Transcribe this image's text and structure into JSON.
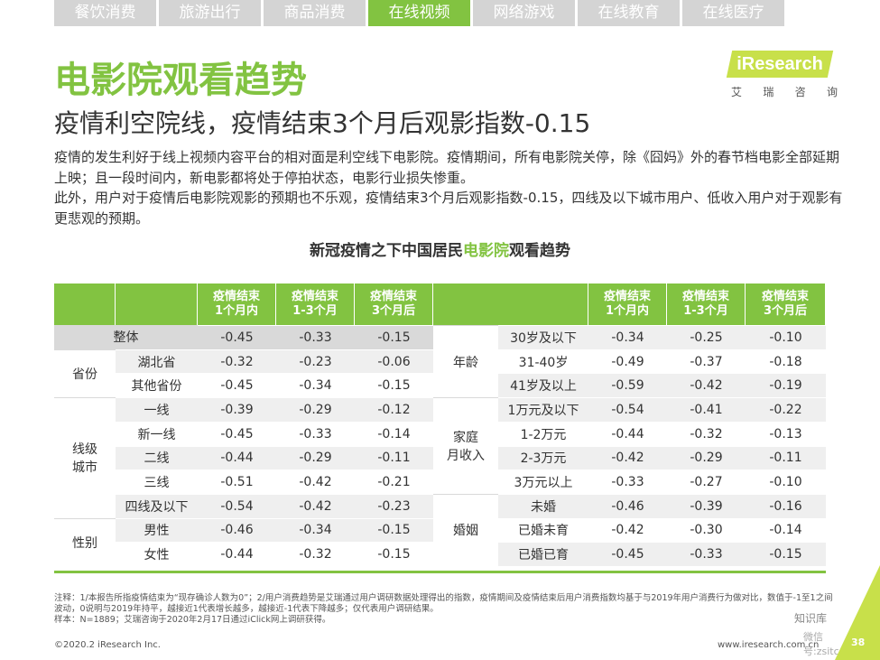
{
  "tabs": [
    "餐饮消费",
    "旅游出行",
    "商品消费",
    "在线视频",
    "网络游戏",
    "在线教育",
    "在线医疗"
  ],
  "active_tab": 3,
  "logo": {
    "text": "iResearch",
    "sub": [
      "艾",
      "瑞",
      "咨",
      "询"
    ]
  },
  "title": "电影院观看趋势",
  "subtitle": "疫情利空院线，疫情结束3个月后观影指数-0.15",
  "paragraphs": [
    "疫情的发生利好于线上视频内容平台的相对面是利空线下电影院。疫情期间，所有电影院关停，除《囧妈》外的春节档电影全部延期上映；且一段时间内，新电影都将处于停拍状态，电影行业损失惨重。",
    "此外，用户对于疫情后电影院观影的预期也不乐观，疫情结束3个月后观影指数-0.15，四线及以下城市用户、低收入用户对于观影有更悲观的预期。"
  ],
  "chart_title": {
    "pre": "新冠疫情之下中国居民",
    "hl": "电影院",
    "post": "观看趋势"
  },
  "headers": [
    "疫情结束\n1个月内",
    "疫情结束\n1-3个月",
    "疫情结束\n3个月后"
  ],
  "left": {
    "overall": {
      "label": "整体",
      "values": [
        "-0.45",
        "-0.33",
        "-0.15"
      ]
    },
    "groups": [
      {
        "label": "省份",
        "rows": [
          {
            "label": "湖北省",
            "values": [
              "-0.32",
              "-0.23",
              "-0.06"
            ]
          },
          {
            "label": "其他省份",
            "values": [
              "-0.45",
              "-0.34",
              "-0.15"
            ]
          }
        ]
      },
      {
        "label": "线级\n城市",
        "rows": [
          {
            "label": "一线",
            "values": [
              "-0.39",
              "-0.29",
              "-0.12"
            ]
          },
          {
            "label": "新一线",
            "values": [
              "-0.45",
              "-0.33",
              "-0.14"
            ]
          },
          {
            "label": "二线",
            "values": [
              "-0.44",
              "-0.29",
              "-0.11"
            ]
          },
          {
            "label": "三线",
            "values": [
              "-0.51",
              "-0.42",
              "-0.21"
            ]
          },
          {
            "label": "四线及以下",
            "values": [
              "-0.54",
              "-0.42",
              "-0.23"
            ]
          }
        ]
      },
      {
        "label": "性别",
        "rows": [
          {
            "label": "男性",
            "values": [
              "-0.46",
              "-0.34",
              "-0.15"
            ]
          },
          {
            "label": "女性",
            "values": [
              "-0.44",
              "-0.32",
              "-0.15"
            ]
          }
        ]
      }
    ]
  },
  "right": {
    "groups": [
      {
        "label": "年龄",
        "rows": [
          {
            "label": "30岁及以下",
            "values": [
              "-0.34",
              "-0.25",
              "-0.10"
            ]
          },
          {
            "label": "31-40岁",
            "values": [
              "-0.49",
              "-0.37",
              "-0.18"
            ]
          },
          {
            "label": "41岁及以上",
            "values": [
              "-0.59",
              "-0.42",
              "-0.19"
            ]
          }
        ]
      },
      {
        "label": "家庭\n月收入",
        "rows": [
          {
            "label": "1万元及以下",
            "values": [
              "-0.54",
              "-0.41",
              "-0.22"
            ]
          },
          {
            "label": "1-2万元",
            "values": [
              "-0.44",
              "-0.32",
              "-0.13"
            ]
          },
          {
            "label": "2-3万元",
            "values": [
              "-0.42",
              "-0.29",
              "-0.11"
            ]
          },
          {
            "label": "3万元以上",
            "values": [
              "-0.33",
              "-0.27",
              "-0.10"
            ]
          }
        ]
      },
      {
        "label": "婚姻",
        "rows": [
          {
            "label": "未婚",
            "values": [
              "-0.46",
              "-0.39",
              "-0.16"
            ]
          },
          {
            "label": "已婚未育",
            "values": [
              "-0.42",
              "-0.30",
              "-0.14"
            ]
          },
          {
            "label": "已婚已育",
            "values": [
              "-0.45",
              "-0.33",
              "-0.15"
            ]
          }
        ]
      }
    ]
  },
  "notes": [
    "注释：1/本报告所指疫情结束为“现存确诊人数为0”；2/用户消费趋势是艾瑞通过用户调研数据处理得出的指数，疫情期间及疫情结束后用户消费指数均基于与2019年用户消费行为做对比，数值于-1至1之间波动，0说明与2019年持平，越接近1代表增长越多，越接近-1代表下降越多；仅代表用户调研结果。",
    "样本：N=1889；艾瑞咨询于2020年2月17日通过iClick网上调研获得。"
  ],
  "copyright": "©2020.2 iResearch Inc.",
  "url": "www.iresearch.com.cn",
  "page_number": "38",
  "watermark": {
    "line1": "知识库",
    "line2": "微信号:zsitcomcn"
  }
}
